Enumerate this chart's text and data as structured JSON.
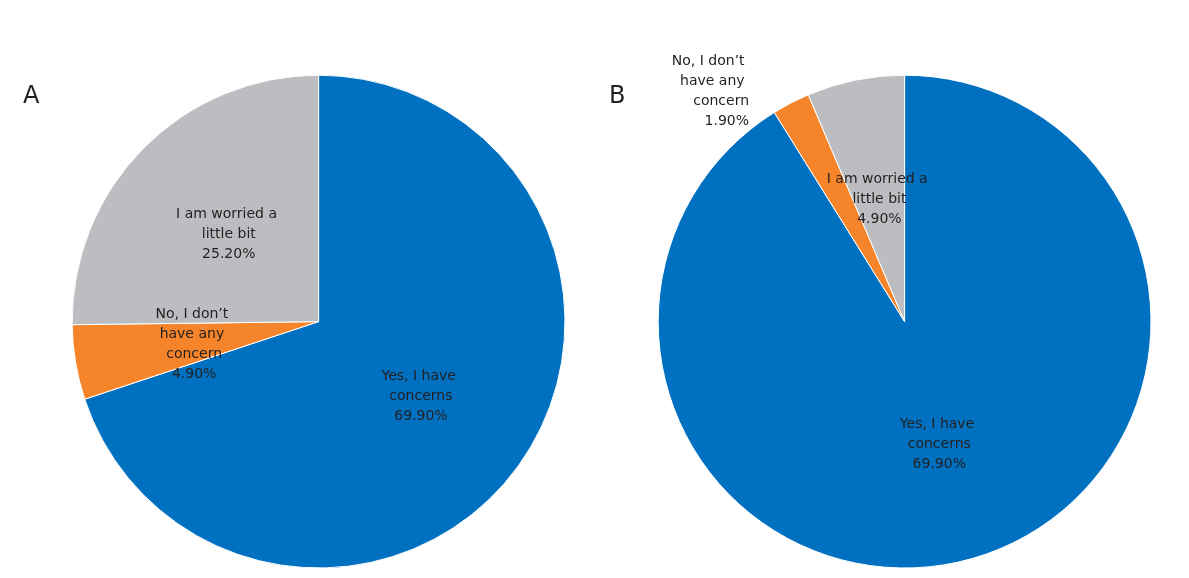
{
  "chart_data": [
    {
      "type": "pie",
      "title": "A",
      "categories": [
        "Yes, I have concerns",
        "No, I don’t have any concern",
        "I am worried a little bit"
      ],
      "values": [
        69.9,
        4.9,
        25.2
      ],
      "colors": [
        "#0070c0",
        "#f5842a",
        "#bcbdc0"
      ],
      "value_labels": [
        "69.90%",
        "4.90%",
        "25.20%"
      ],
      "legend": false
    },
    {
      "type": "pie",
      "title": "B",
      "categories": [
        "Yes, I have concerns",
        "No, I don’t have any concern",
        "I am worried a little bit"
      ],
      "values": [
        69.9,
        1.9,
        4.9
      ],
      "colors": [
        "#0070c0",
        "#f5842a",
        "#bcbdc0"
      ],
      "value_labels": [
        "69.90%",
        "1.90%",
        "4.90%"
      ],
      "legend": false
    }
  ]
}
